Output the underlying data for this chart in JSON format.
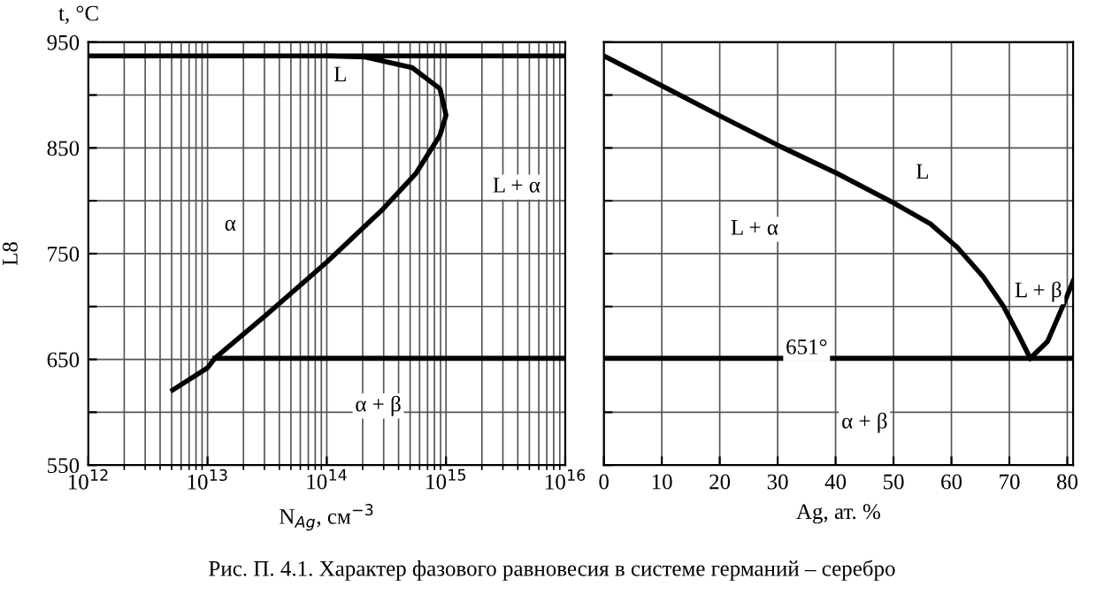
{
  "chart_data": [
    {
      "type": "line",
      "ylabel": "t, °C",
      "xlabel": "N$_{Ag}$, см$^{−3}$",
      "log": "x",
      "xlim": [
        1000000000000.0,
        1e+16
      ],
      "xticks": [
        {
          "value": 1000000000000.0,
          "label": "10$^{12}$"
        },
        {
          "value": 10000000000000.0,
          "label": "10$^{13}$"
        },
        {
          "value": 100000000000000.0,
          "label": "10$^{14}$"
        },
        {
          "value": 1000000000000000.0,
          "label": "10$^{15}$"
        },
        {
          "value": 1e+16,
          "label": "10$^{16}$"
        }
      ],
      "ylim": [
        550,
        950
      ],
      "yticks": [
        550,
        {
          "value": 600,
          "label": null
        },
        650,
        {
          "value": 700,
          "label": null
        },
        750,
        {
          "value": 800,
          "label": null
        },
        850,
        {
          "value": 900,
          "label": null
        },
        950
      ],
      "grid": true,
      "legend": false,
      "marker": "none",
      "line_style": "solid",
      "series": [
        {
          "color": "#000000",
          "x": [
            5100000000000.0,
            10000000000000.0,
            11500000000000.0,
            31000000000000.0,
            100000000000000.0,
            295000000000000.0,
            560000000000000.0,
            890000000000000.0,
            1000000000000000.0,
            890000000000000.0,
            520000000000000.0,
            210000000000000.0,
            100000000000000.0
          ],
          "values": [
            621,
            642,
            651,
            692,
            742,
            792,
            826,
            862,
            881,
            906,
            926,
            936,
            937
          ]
        },
        {
          "color": "#000000",
          "x": [
            1000000000000.0,
            1e+16
          ],
          "values": [
            937,
            937
          ]
        },
        {
          "color": "#000000",
          "x": [
            11500000000000.0,
            1e+16
          ],
          "values": [
            651,
            651
          ]
        }
      ],
      "annotations": [
        {
          "text": "L",
          "x": 130000000000000.0,
          "y": 918
        },
        {
          "text": "α",
          "x": 15500000000000.0,
          "y": 777
        },
        {
          "text": "L + α",
          "x": 3900000000000000.0,
          "y": 813
        },
        {
          "text": "α + β",
          "x": 270000000000000.0,
          "y": 606
        },
        "L8"
      ]
    },
    {
      "type": "line",
      "xlabel": "Ag, ат. %",
      "xlim": [
        0,
        81
      ],
      "xticks": [
        0,
        10,
        20,
        30,
        40,
        50,
        60,
        70,
        80
      ],
      "ylim": [
        550,
        950
      ],
      "yticks": [
        550,
        600,
        650,
        700,
        750,
        800,
        850,
        900,
        950
      ],
      "tick_labels": "x",
      "grid": true,
      "legend": false,
      "marker": "none",
      "line_style": "solid",
      "series": [
        {
          "color": "#000000",
          "x": [
            0,
            10.3,
            20.5,
            30.6,
            40.2,
            50,
            56.4,
            61,
            65.5,
            69,
            71.6,
            73.6
          ],
          "values": [
            937,
            908,
            879,
            851,
            826,
            798,
            778,
            756,
            728,
            700,
            673,
            651
          ]
        },
        {
          "color": "#000000",
          "x": [
            73.6,
            76.6,
            79.2,
            81
          ],
          "values": [
            651,
            667,
            700,
            724
          ]
        },
        {
          "color": "#000000",
          "x": [
            0,
            81
          ],
          "values": [
            651,
            651
          ]
        }
      ],
      "annotations": [
        {
          "text": "L",
          "x": 55,
          "y": 826
        },
        {
          "text": "L + α",
          "x": 26,
          "y": 773
        },
        {
          "text": "L + β",
          "x": 75,
          "y": 714
        },
        {
          "text": "651°",
          "x": 35,
          "y": 660
        },
        {
          "text": "α + β",
          "x": 45,
          "y": 590
        },
        "Рис. П. 4.1. Характер фазового равновесия в системе германий – серебро"
      ]
    }
  ]
}
